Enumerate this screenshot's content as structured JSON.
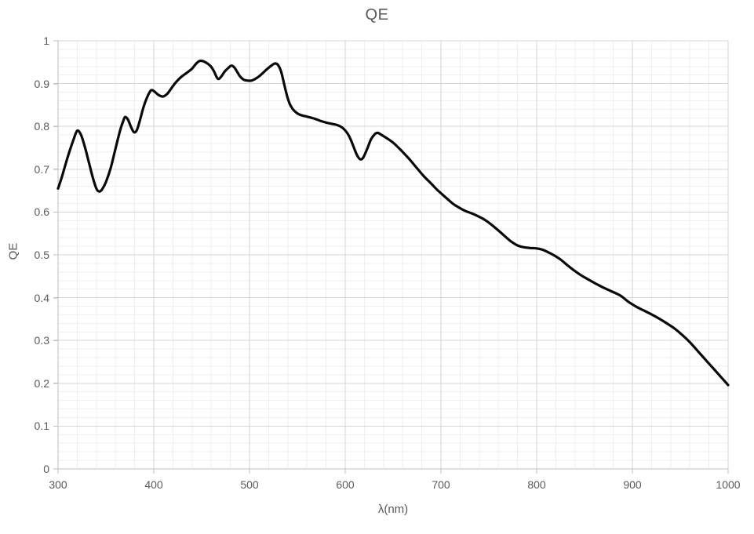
{
  "title": "QE",
  "axes": {
    "x": {
      "title": "λ(nm)",
      "min": 300,
      "max": 1000,
      "major_tick_labels": [
        "300",
        "400",
        "500",
        "600",
        "700",
        "800",
        "900",
        "1000"
      ],
      "major_step": 100,
      "minor_step": 20
    },
    "y": {
      "title": "QE",
      "min": 0,
      "max": 1,
      "major_tick_labels": [
        "0",
        "0.1",
        "0.2",
        "0.3",
        "0.4",
        "0.5",
        "0.6",
        "0.7",
        "0.8",
        "0.9",
        "1"
      ],
      "major_step": 0.1,
      "minor_step": 0.02
    }
  },
  "colors": {
    "background": "#ffffff",
    "curve": "#0a0a0a",
    "grid_major": "#d6d6d6",
    "grid_minor": "#efefef",
    "axis_line": "#bfbfbf",
    "text": "#595959"
  },
  "chart_data": {
    "type": "line",
    "title": "QE",
    "xlabel": "λ(nm)",
    "ylabel": "QE",
    "xlim": [
      300,
      1000
    ],
    "ylim": [
      0,
      1
    ],
    "grid": "major and minor gridlines on, light gray",
    "legend": "none",
    "series": [
      {
        "name": "QE",
        "color": "#0a0a0a",
        "points": [
          [
            300,
            0.655
          ],
          [
            304,
            0.682
          ],
          [
            308,
            0.713
          ],
          [
            312,
            0.742
          ],
          [
            316,
            0.768
          ],
          [
            320,
            0.79
          ],
          [
            324,
            0.78
          ],
          [
            328,
            0.752
          ],
          [
            332,
            0.718
          ],
          [
            336,
            0.683
          ],
          [
            340,
            0.655
          ],
          [
            343,
            0.648
          ],
          [
            346,
            0.653
          ],
          [
            350,
            0.67
          ],
          [
            355,
            0.703
          ],
          [
            360,
            0.748
          ],
          [
            365,
            0.792
          ],
          [
            368,
            0.812
          ],
          [
            370,
            0.822
          ],
          [
            373,
            0.816
          ],
          [
            376,
            0.8
          ],
          [
            379,
            0.787
          ],
          [
            382,
            0.79
          ],
          [
            385,
            0.81
          ],
          [
            389,
            0.843
          ],
          [
            393,
            0.868
          ],
          [
            396,
            0.881
          ],
          [
            398,
            0.885
          ],
          [
            401,
            0.881
          ],
          [
            404,
            0.875
          ],
          [
            407,
            0.871
          ],
          [
            410,
            0.87
          ],
          [
            414,
            0.876
          ],
          [
            418,
            0.888
          ],
          [
            422,
            0.9
          ],
          [
            426,
            0.91
          ],
          [
            430,
            0.918
          ],
          [
            435,
            0.926
          ],
          [
            440,
            0.935
          ],
          [
            444,
            0.946
          ],
          [
            448,
            0.953
          ],
          [
            452,
            0.952
          ],
          [
            456,
            0.947
          ],
          [
            460,
            0.939
          ],
          [
            463,
            0.928
          ],
          [
            466,
            0.914
          ],
          [
            468,
            0.911
          ],
          [
            471,
            0.918
          ],
          [
            474,
            0.928
          ],
          [
            478,
            0.937
          ],
          [
            481,
            0.942
          ],
          [
            484,
            0.938
          ],
          [
            487,
            0.928
          ],
          [
            490,
            0.917
          ],
          [
            494,
            0.909
          ],
          [
            498,
            0.907
          ],
          [
            502,
            0.907
          ],
          [
            506,
            0.911
          ],
          [
            510,
            0.917
          ],
          [
            515,
            0.927
          ],
          [
            520,
            0.937
          ],
          [
            524,
            0.944
          ],
          [
            527,
            0.947
          ],
          [
            530,
            0.943
          ],
          [
            533,
            0.928
          ],
          [
            536,
            0.901
          ],
          [
            539,
            0.873
          ],
          [
            542,
            0.853
          ],
          [
            545,
            0.841
          ],
          [
            549,
            0.832
          ],
          [
            553,
            0.827
          ],
          [
            558,
            0.824
          ],
          [
            563,
            0.821
          ],
          [
            568,
            0.818
          ],
          [
            574,
            0.813
          ],
          [
            580,
            0.809
          ],
          [
            586,
            0.806
          ],
          [
            592,
            0.803
          ],
          [
            597,
            0.797
          ],
          [
            602,
            0.785
          ],
          [
            606,
            0.768
          ],
          [
            610,
            0.745
          ],
          [
            613,
            0.73
          ],
          [
            616,
            0.723
          ],
          [
            619,
            0.728
          ],
          [
            623,
            0.748
          ],
          [
            627,
            0.77
          ],
          [
            631,
            0.782
          ],
          [
            634,
            0.785
          ],
          [
            638,
            0.78
          ],
          [
            643,
            0.773
          ],
          [
            650,
            0.762
          ],
          [
            658,
            0.745
          ],
          [
            666,
            0.726
          ],
          [
            674,
            0.705
          ],
          [
            682,
            0.684
          ],
          [
            690,
            0.666
          ],
          [
            696,
            0.652
          ],
          [
            702,
            0.64
          ],
          [
            708,
            0.628
          ],
          [
            714,
            0.617
          ],
          [
            720,
            0.609
          ],
          [
            726,
            0.602
          ],
          [
            732,
            0.597
          ],
          [
            738,
            0.591
          ],
          [
            745,
            0.583
          ],
          [
            752,
            0.572
          ],
          [
            760,
            0.557
          ],
          [
            768,
            0.541
          ],
          [
            774,
            0.53
          ],
          [
            780,
            0.522
          ],
          [
            786,
            0.518
          ],
          [
            793,
            0.516
          ],
          [
            800,
            0.515
          ],
          [
            806,
            0.512
          ],
          [
            812,
            0.506
          ],
          [
            818,
            0.499
          ],
          [
            825,
            0.489
          ],
          [
            832,
            0.476
          ],
          [
            840,
            0.462
          ],
          [
            848,
            0.45
          ],
          [
            856,
            0.44
          ],
          [
            864,
            0.43
          ],
          [
            872,
            0.421
          ],
          [
            880,
            0.413
          ],
          [
            888,
            0.404
          ],
          [
            896,
            0.39
          ],
          [
            904,
            0.379
          ],
          [
            912,
            0.37
          ],
          [
            920,
            0.361
          ],
          [
            928,
            0.351
          ],
          [
            936,
            0.34
          ],
          [
            944,
            0.328
          ],
          [
            952,
            0.313
          ],
          [
            960,
            0.296
          ],
          [
            968,
            0.276
          ],
          [
            976,
            0.256
          ],
          [
            984,
            0.236
          ],
          [
            992,
            0.216
          ],
          [
            1000,
            0.196
          ]
        ]
      }
    ]
  }
}
